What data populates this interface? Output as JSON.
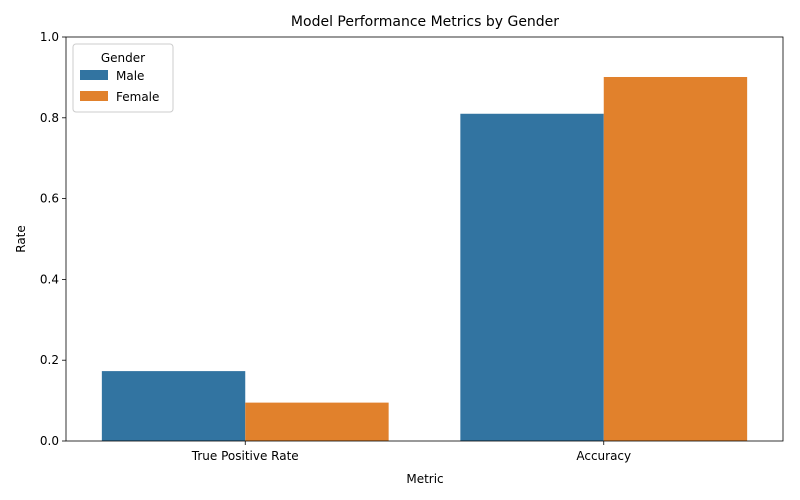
{
  "chart_data": {
    "type": "bar",
    "title": "Model Performance Metrics by Gender",
    "xlabel": "Metric",
    "ylabel": "Rate",
    "categories": [
      "True Positive Rate",
      "Accuracy"
    ],
    "series": [
      {
        "name": "Male",
        "values": [
          0.173,
          0.81
        ],
        "color": "#3274a1"
      },
      {
        "name": "Female",
        "values": [
          0.095,
          0.901
        ],
        "color": "#e1812c"
      }
    ],
    "ylim": [
      0,
      1.0
    ],
    "yticks": [
      0.0,
      0.2,
      0.4,
      0.6,
      0.8,
      1.0
    ],
    "ytick_labels": [
      "0.0",
      "0.2",
      "0.4",
      "0.6",
      "0.8",
      "1.0"
    ],
    "grid": false,
    "legend": {
      "title": "Gender",
      "placement": "top-left"
    }
  }
}
